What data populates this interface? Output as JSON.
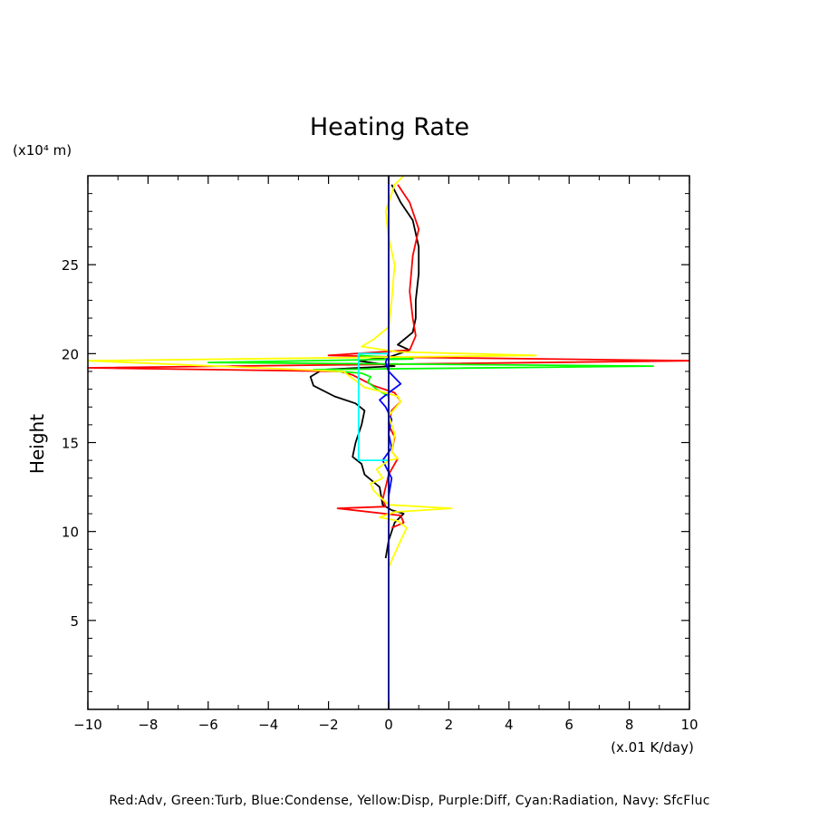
{
  "chart_data": {
    "type": "line",
    "title": "Heating Rate",
    "xlabel": "(x.01 K/day)",
    "ylabel": "Height",
    "yunit": "(x10⁴ m)",
    "xlim": [
      -10,
      10
    ],
    "ylim": [
      0,
      30
    ],
    "xticks": [
      -10,
      -8,
      -6,
      -4,
      -2,
      0,
      2,
      4,
      6,
      8,
      10
    ],
    "yticks": [
      5,
      10,
      15,
      20,
      25
    ],
    "grid": false,
    "legend_text": "Red:Adv, Green:Turb, Blue:Condense, Yellow:Disp, Purple:Diff, Cyan:Radiation, Navy: SfcFluc",
    "series": [
      {
        "color": "#000000",
        "points": [
          [
            -0.1,
            8.5
          ],
          [
            0,
            9.5
          ],
          [
            0.2,
            10.5
          ],
          [
            0.5,
            11.0
          ],
          [
            0.1,
            11.2
          ],
          [
            -0.2,
            11.5
          ],
          [
            -0.3,
            12.5
          ],
          [
            -0.8,
            13.2
          ],
          [
            -0.9,
            13.8
          ],
          [
            -1.2,
            14.2
          ],
          [
            -1.1,
            15.0
          ],
          [
            -0.9,
            16.0
          ],
          [
            -0.8,
            16.8
          ],
          [
            -1.1,
            17.2
          ],
          [
            -1.8,
            17.6
          ],
          [
            -2.5,
            18.2
          ],
          [
            -2.6,
            18.7
          ],
          [
            -2.2,
            19.1
          ],
          [
            0.2,
            19.3
          ],
          [
            -1.0,
            19.6
          ],
          [
            0.0,
            19.8
          ],
          [
            0.7,
            20.2
          ],
          [
            0.3,
            20.5
          ],
          [
            0.8,
            21.2
          ],
          [
            0.9,
            22.0
          ],
          [
            0.9,
            23.0
          ],
          [
            1.0,
            24.5
          ],
          [
            1.0,
            26.0
          ],
          [
            0.8,
            27.5
          ],
          [
            0.4,
            28.5
          ],
          [
            0.1,
            29.5
          ]
        ]
      },
      {
        "color": "#ff0000",
        "points": [
          [
            0.1,
            10.2
          ],
          [
            0.5,
            10.5
          ],
          [
            0.4,
            10.9
          ],
          [
            -1.7,
            11.3
          ],
          [
            -0.1,
            11.4
          ],
          [
            -0.2,
            11.8
          ],
          [
            -0.1,
            12.5
          ],
          [
            0.0,
            13.2
          ],
          [
            0.3,
            14.1
          ],
          [
            0.1,
            14.5
          ],
          [
            0.2,
            15.3
          ],
          [
            0.0,
            16.0
          ],
          [
            0.1,
            16.8
          ],
          [
            0.4,
            17.3
          ],
          [
            0.2,
            17.8
          ],
          [
            -0.5,
            18.2
          ],
          [
            -1.2,
            18.8
          ],
          [
            -1.6,
            19.0
          ],
          [
            -10.0,
            19.2
          ],
          [
            10.0,
            19.6
          ],
          [
            0.5,
            19.8
          ],
          [
            -2.0,
            19.9
          ],
          [
            0.7,
            20.2
          ],
          [
            0.9,
            21.0
          ],
          [
            0.8,
            22.0
          ],
          [
            0.7,
            23.5
          ],
          [
            0.8,
            25.5
          ],
          [
            1.0,
            27.0
          ],
          [
            0.7,
            28.5
          ],
          [
            0.3,
            29.5
          ]
        ]
      },
      {
        "color": "#00ff00",
        "points": [
          [
            0.0,
            17.6
          ],
          [
            -0.4,
            18.0
          ],
          [
            -0.7,
            18.4
          ],
          [
            -0.6,
            18.7
          ],
          [
            -0.9,
            18.9
          ],
          [
            -2.5,
            19.1
          ],
          [
            8.8,
            19.3
          ],
          [
            -6.0,
            19.5
          ],
          [
            0.8,
            19.7
          ],
          [
            -1.0,
            19.9
          ]
        ]
      },
      {
        "color": "#0000ff",
        "points": [
          [
            0.0,
            12.0
          ],
          [
            0.1,
            13.0
          ],
          [
            -0.2,
            14.0
          ],
          [
            0.1,
            14.7
          ],
          [
            0.0,
            15.5
          ],
          [
            0.1,
            16.3
          ],
          [
            -0.1,
            17.0
          ],
          [
            -0.3,
            17.4
          ],
          [
            0.0,
            17.8
          ],
          [
            0.4,
            18.3
          ],
          [
            0.0,
            19.0
          ],
          [
            -0.1,
            19.5
          ],
          [
            0.0,
            20.0
          ]
        ]
      },
      {
        "color": "#ffff00",
        "points": [
          [
            0.0,
            8.0
          ],
          [
            0.4,
            9.5
          ],
          [
            0.6,
            10.2
          ],
          [
            0.3,
            10.6
          ],
          [
            -0.3,
            10.8
          ],
          [
            0.2,
            11.1
          ],
          [
            2.1,
            11.3
          ],
          [
            0.0,
            11.5
          ],
          [
            -0.2,
            11.8
          ],
          [
            -0.5,
            12.3
          ],
          [
            -0.6,
            12.7
          ],
          [
            -0.2,
            13.0
          ],
          [
            -0.4,
            13.5
          ],
          [
            0.0,
            14.0
          ],
          [
            0.3,
            14.1
          ],
          [
            0.1,
            14.5
          ],
          [
            0.2,
            15.5
          ],
          [
            0.0,
            16.5
          ],
          [
            0.4,
            17.3
          ],
          [
            0.3,
            17.6
          ],
          [
            -0.3,
            17.9
          ],
          [
            -0.8,
            18.1
          ],
          [
            -1.2,
            18.6
          ],
          [
            -1.5,
            19.0
          ],
          [
            -10.0,
            19.6
          ],
          [
            4.9,
            19.9
          ],
          [
            0.3,
            20.1
          ],
          [
            -0.9,
            20.4
          ],
          [
            -0.5,
            20.8
          ],
          [
            0.0,
            21.5
          ],
          [
            0.1,
            23.0
          ],
          [
            0.2,
            25.0
          ],
          [
            0.0,
            26.5
          ],
          [
            -0.1,
            28.0
          ],
          [
            0.2,
            29.5
          ],
          [
            0.5,
            30.0
          ]
        ]
      },
      {
        "color": "#00ffff",
        "points": [
          [
            0.0,
            14.0
          ],
          [
            -1.0,
            14.0
          ],
          [
            -1.0,
            20.0
          ],
          [
            0.0,
            20.0
          ]
        ]
      },
      {
        "color": "#000080",
        "points": [
          [
            0.0,
            0.0
          ],
          [
            0.0,
            30.0
          ]
        ]
      }
    ]
  }
}
